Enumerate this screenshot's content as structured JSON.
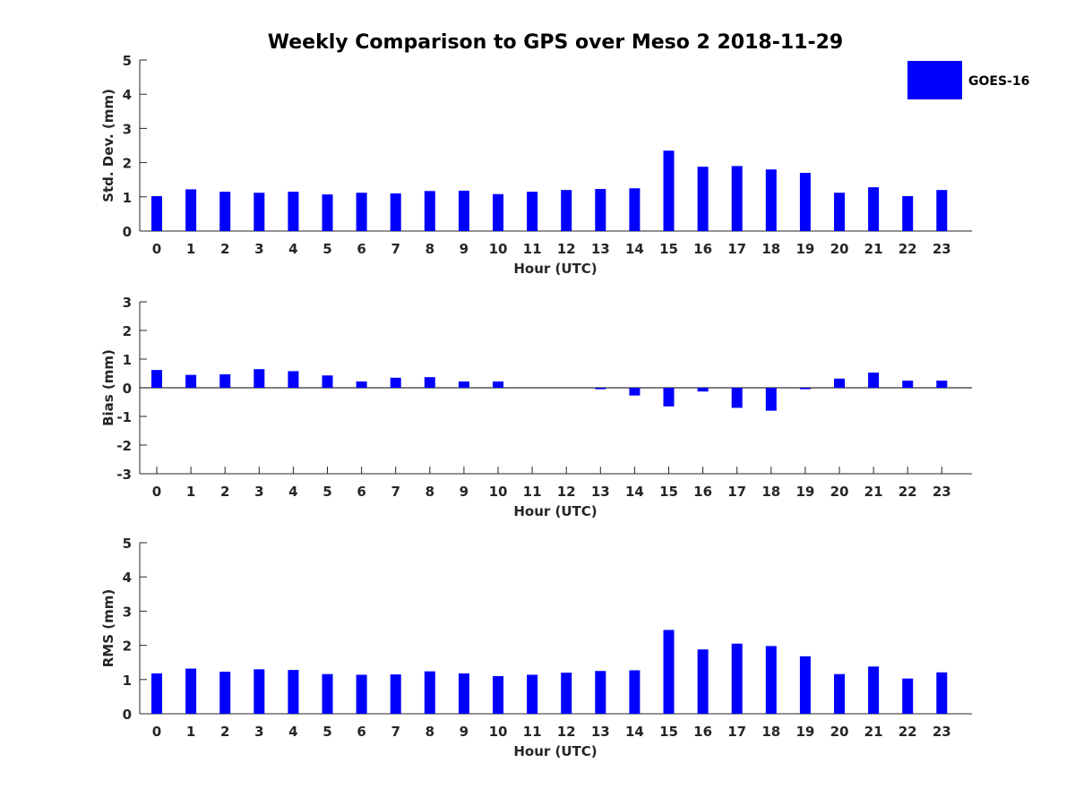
{
  "title": "Weekly Comparison to GPS over Meso 2 2018-11-29",
  "legend": {
    "label": "GOES-16",
    "color": "#0000ff"
  },
  "chart_data": [
    {
      "type": "bar",
      "name": "std-dev",
      "categories": [
        "0",
        "1",
        "2",
        "3",
        "4",
        "5",
        "6",
        "7",
        "8",
        "9",
        "10",
        "11",
        "12",
        "13",
        "14",
        "15",
        "16",
        "17",
        "18",
        "19",
        "20",
        "21",
        "22",
        "23"
      ],
      "values": [
        1.02,
        1.22,
        1.15,
        1.12,
        1.15,
        1.07,
        1.12,
        1.1,
        1.17,
        1.18,
        1.08,
        1.15,
        1.2,
        1.23,
        1.25,
        2.35,
        1.88,
        1.9,
        1.8,
        1.7,
        1.12,
        1.28,
        1.02,
        1.2
      ],
      "xlabel": "Hour (UTC)",
      "ylabel": "Std. Dev. (mm)",
      "ylim": [
        0,
        5
      ],
      "yticks": [
        "0",
        "1",
        "2",
        "3",
        "4",
        "5"
      ]
    },
    {
      "type": "bar",
      "name": "bias",
      "categories": [
        "0",
        "1",
        "2",
        "3",
        "4",
        "5",
        "6",
        "7",
        "8",
        "9",
        "10",
        "11",
        "12",
        "13",
        "14",
        "15",
        "16",
        "17",
        "18",
        "19",
        "20",
        "21",
        "22",
        "23"
      ],
      "values": [
        0.62,
        0.45,
        0.47,
        0.65,
        0.58,
        0.43,
        0.22,
        0.35,
        0.37,
        0.22,
        0.22,
        0.0,
        0.0,
        -0.05,
        -0.27,
        -0.65,
        -0.13,
        -0.7,
        -0.8,
        -0.05,
        0.32,
        0.53,
        0.25,
        0.25
      ],
      "xlabel": "Hour (UTC)",
      "ylabel": "Bias (mm)",
      "ylim": [
        -3,
        3
      ],
      "yticks": [
        "-3",
        "-2",
        "-1",
        "0",
        "1",
        "2",
        "3"
      ]
    },
    {
      "type": "bar",
      "name": "rms",
      "categories": [
        "0",
        "1",
        "2",
        "3",
        "4",
        "5",
        "6",
        "7",
        "8",
        "9",
        "10",
        "11",
        "12",
        "13",
        "14",
        "15",
        "16",
        "17",
        "18",
        "19",
        "20",
        "21",
        "22",
        "23"
      ],
      "values": [
        1.18,
        1.32,
        1.23,
        1.3,
        1.28,
        1.16,
        1.14,
        1.15,
        1.24,
        1.18,
        1.1,
        1.14,
        1.2,
        1.25,
        1.27,
        2.45,
        1.88,
        2.05,
        1.98,
        1.68,
        1.16,
        1.38,
        1.03,
        1.21
      ],
      "xlabel": "Hour (UTC)",
      "ylabel": "RMS (mm)",
      "ylim": [
        0,
        5
      ],
      "yticks": [
        "0",
        "1",
        "2",
        "3",
        "4",
        "5"
      ]
    }
  ]
}
